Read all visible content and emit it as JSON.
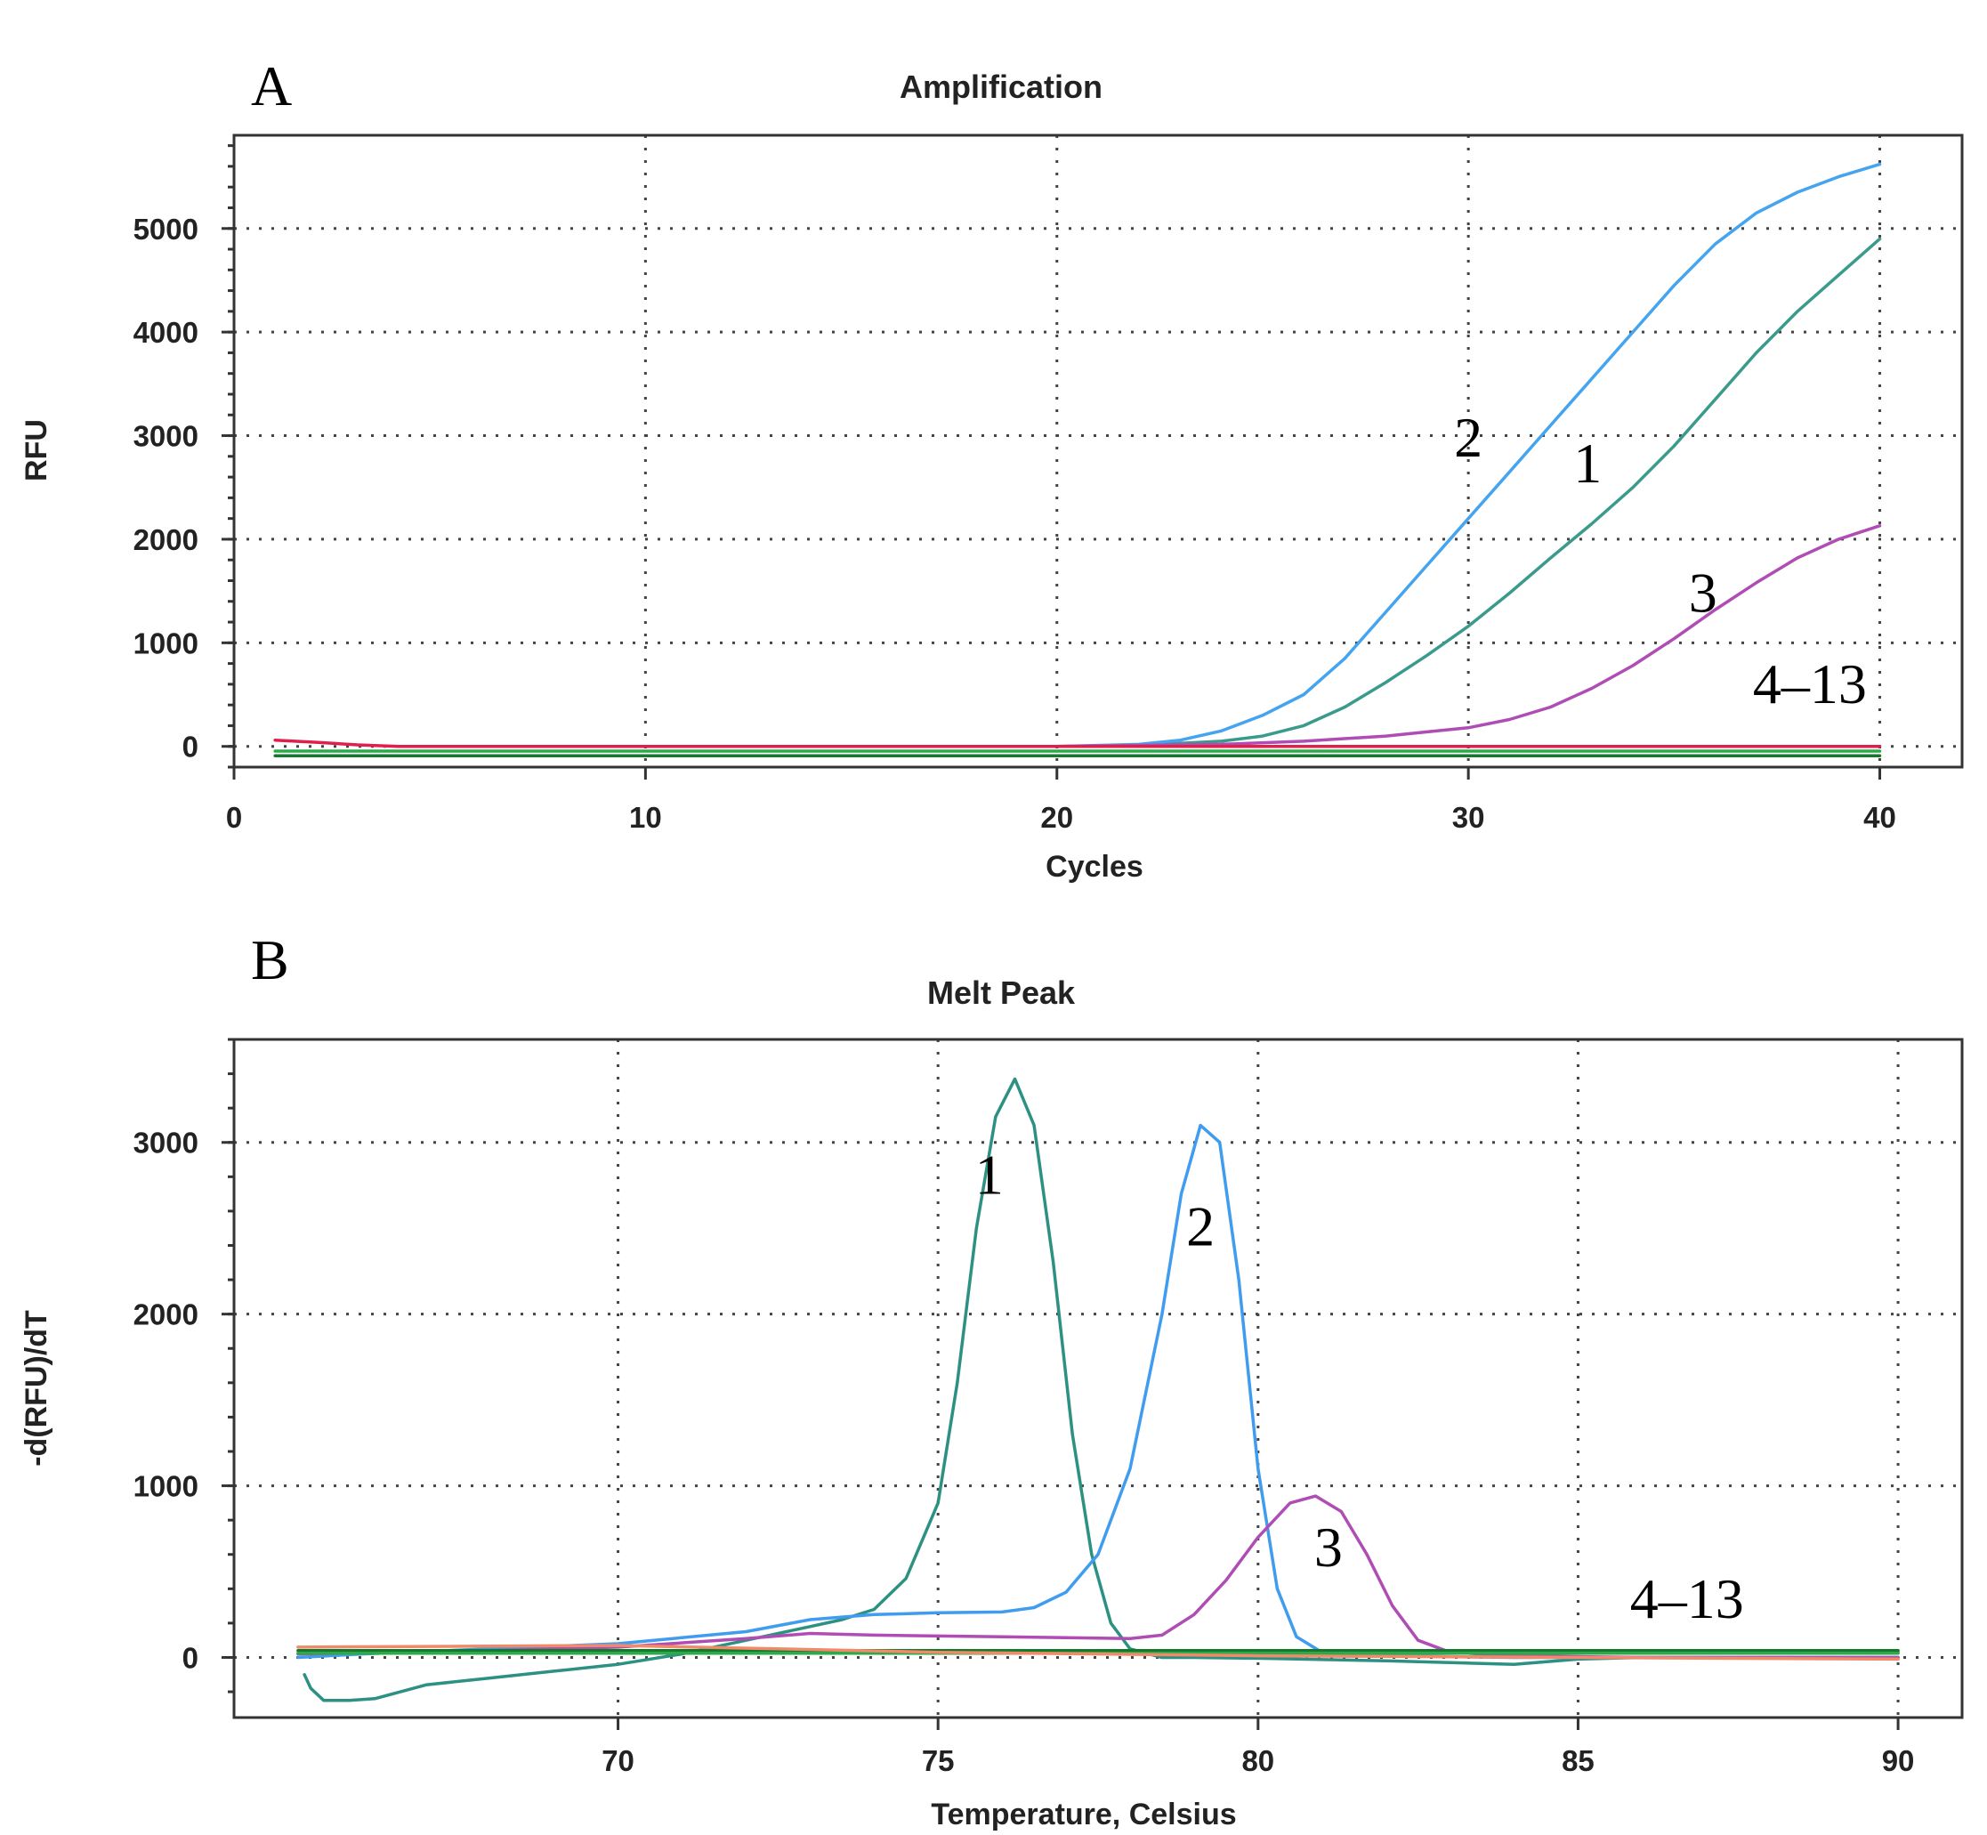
{
  "chart_data": [
    {
      "id": "amp",
      "panel_label": "A",
      "type": "line",
      "title": "Amplification",
      "xlabel": "Cycles",
      "ylabel": "RFU",
      "xlim": [
        0,
        42
      ],
      "ylim": [
        -200,
        5900
      ],
      "xticks": [
        0,
        10,
        20,
        30,
        40
      ],
      "yticks": [
        0,
        1000,
        2000,
        3000,
        4000,
        5000
      ],
      "grid": true,
      "series": [
        {
          "name": "1",
          "color": "#3a9a8c",
          "x": [
            20,
            22,
            24,
            25,
            26,
            27,
            28,
            29,
            30,
            31,
            32,
            33,
            34,
            35,
            36,
            37,
            38,
            39,
            40
          ],
          "y": [
            0,
            10,
            50,
            100,
            200,
            380,
            620,
            880,
            1160,
            1480,
            1820,
            2150,
            2500,
            2900,
            3350,
            3800,
            4200,
            4550,
            4900
          ]
        },
        {
          "name": "2",
          "color": "#45a4ef",
          "x": [
            20,
            22,
            23,
            24,
            25,
            26,
            27,
            28,
            29,
            30,
            31,
            32,
            33,
            34,
            35,
            36,
            37,
            38,
            39,
            40
          ],
          "y": [
            0,
            20,
            60,
            150,
            300,
            500,
            850,
            1300,
            1750,
            2200,
            2650,
            3100,
            3550,
            4000,
            4450,
            4850,
            5150,
            5350,
            5500,
            5620
          ]
        },
        {
          "name": "3",
          "color": "#b04db4",
          "x": [
            20,
            24,
            26,
            28,
            29,
            30,
            31,
            32,
            33,
            34,
            35,
            36,
            37,
            38,
            39,
            40
          ],
          "y": [
            0,
            20,
            50,
            100,
            140,
            180,
            260,
            380,
            560,
            780,
            1040,
            1320,
            1580,
            1820,
            2000,
            2130
          ]
        },
        {
          "name": "4–13 (red)",
          "color": "#e0204a",
          "x": [
            1,
            2,
            3,
            4,
            40
          ],
          "y": [
            60,
            40,
            15,
            0,
            0
          ]
        },
        {
          "name": "4–13 (dark green)",
          "color": "#127a2a",
          "x": [
            1,
            40
          ],
          "y": [
            -90,
            -90
          ]
        },
        {
          "name": "4–13 (green)",
          "color": "#2ea84a",
          "x": [
            1,
            40
          ],
          "y": [
            -45,
            -45
          ]
        }
      ],
      "annotations": [
        {
          "text": "2",
          "x": 30,
          "y": 2800
        },
        {
          "text": "1",
          "x": 32.9,
          "y": 2550
        },
        {
          "text": "3",
          "x": 35.7,
          "y": 1300
        },
        {
          "text": "4–13",
          "x": 38.3,
          "y": 420
        }
      ]
    },
    {
      "id": "melt",
      "panel_label": "B",
      "type": "line",
      "title": "Melt Peak",
      "xlabel": "Temperature, Celsius",
      "ylabel": "-d(RFU)/dT",
      "xlim": [
        64,
        91
      ],
      "ylim": [
        -350,
        3600
      ],
      "xticks": [
        70,
        75,
        80,
        85,
        90
      ],
      "yticks": [
        0,
        1000,
        2000,
        3000
      ],
      "grid": true,
      "series": [
        {
          "name": "1",
          "color": "#2c9182",
          "x": [
            65.1,
            65.2,
            65.4,
            65.8,
            66.2,
            66.6,
            67,
            68,
            69,
            70,
            71,
            72,
            73,
            73.5,
            74,
            74.5,
            75,
            75.3,
            75.6,
            75.9,
            76.2,
            76.5,
            76.8,
            77.1,
            77.4,
            77.7,
            78,
            78.5,
            79,
            80,
            82,
            84,
            85,
            86,
            88,
            90
          ],
          "y": [
            -100,
            -180,
            -250,
            -250,
            -240,
            -200,
            -160,
            -120,
            -80,
            -40,
            20,
            100,
            180,
            220,
            280,
            460,
            900,
            1600,
            2500,
            3150,
            3370,
            3100,
            2300,
            1300,
            600,
            200,
            50,
            0,
            0,
            -5,
            -20,
            -40,
            -10,
            0,
            0,
            0
          ]
        },
        {
          "name": "2",
          "color": "#3f9cef",
          "x": [
            65,
            66,
            68,
            70,
            72,
            73,
            74,
            75,
            76,
            76.5,
            77,
            77.5,
            78,
            78.5,
            78.8,
            79.1,
            79.4,
            79.7,
            80,
            80.3,
            80.6,
            81,
            82,
            84,
            86,
            90
          ],
          "y": [
            0,
            20,
            50,
            80,
            150,
            220,
            250,
            260,
            265,
            290,
            380,
            600,
            1100,
            2000,
            2700,
            3100,
            3000,
            2200,
            1100,
            400,
            120,
            30,
            10,
            0,
            0,
            0
          ]
        },
        {
          "name": "3",
          "color": "#b04db4",
          "x": [
            65,
            68,
            70,
            72,
            73,
            74,
            76,
            78,
            78.5,
            79,
            79.5,
            80,
            80.5,
            80.9,
            81.3,
            81.7,
            82.1,
            82.5,
            83,
            84,
            86,
            90
          ],
          "y": [
            20,
            40,
            60,
            110,
            140,
            130,
            120,
            110,
            130,
            250,
            450,
            700,
            900,
            940,
            850,
            600,
            300,
            100,
            30,
            10,
            0,
            0
          ]
        },
        {
          "name": "4–13 (dark green)",
          "color": "#127a2a",
          "x": [
            65,
            90
          ],
          "y": [
            40,
            40
          ]
        },
        {
          "name": "4–13 (green)",
          "color": "#2ea84a",
          "x": [
            65,
            90
          ],
          "y": [
            25,
            25
          ]
        },
        {
          "name": "4–13 (orange)",
          "color": "#f08a6a",
          "x": [
            65,
            70,
            75,
            80,
            85,
            90
          ],
          "y": [
            60,
            70,
            30,
            10,
            0,
            -10
          ]
        }
      ],
      "annotations": [
        {
          "text": "1",
          "x": 75.8,
          "y": 2700
        },
        {
          "text": "2",
          "x": 79.1,
          "y": 2400
        },
        {
          "text": "3",
          "x": 81.1,
          "y": 530
        },
        {
          "text": "4–13",
          "x": 86.7,
          "y": 230
        }
      ]
    }
  ]
}
